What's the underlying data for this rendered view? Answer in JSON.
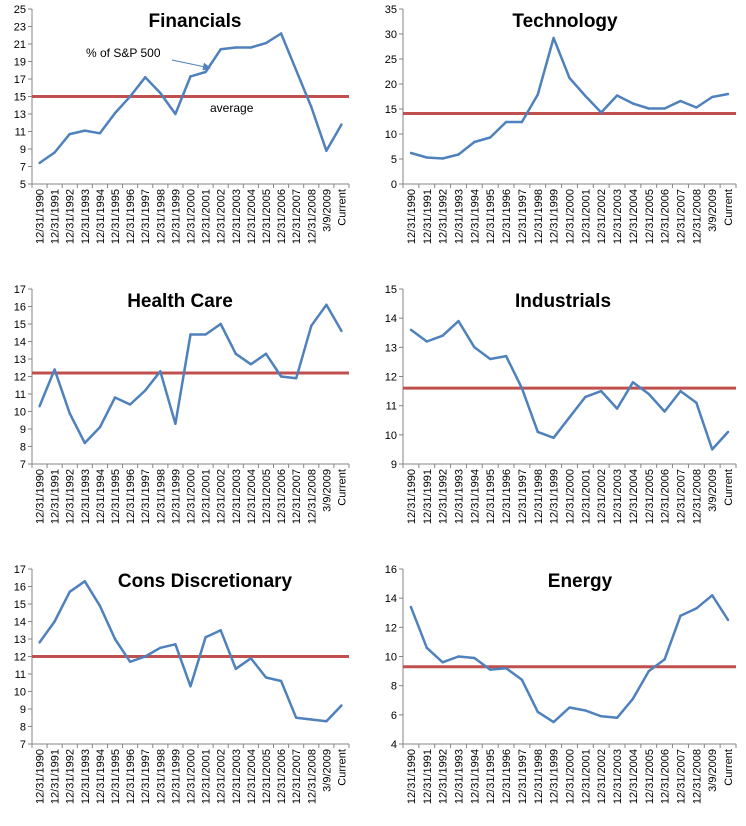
{
  "chart_data": [
    {
      "type": "line",
      "title": "Financials",
      "categories": [
        "12/31/1990",
        "12/31/1991",
        "12/31/1992",
        "12/31/1993",
        "12/31/1994",
        "12/31/1995",
        "12/31/1996",
        "12/31/1997",
        "12/31/1998",
        "12/31/1999",
        "12/31/2000",
        "12/31/2001",
        "12/31/2002",
        "12/31/2003",
        "12/31/2004",
        "12/31/2005",
        "12/31/2006",
        "12/31/2007",
        "12/31/2008",
        "3/9/2009",
        "Current"
      ],
      "series": [
        {
          "values": [
            7.4,
            8.6,
            10.7,
            11.1,
            10.8,
            13.1,
            15.0,
            17.2,
            15.4,
            13.0,
            17.3,
            17.8,
            20.4,
            20.6,
            20.6,
            21.1,
            22.2,
            18.0,
            13.8,
            8.8,
            11.8
          ],
          "color": "#4f81bd"
        }
      ],
      "average": 15.0,
      "average_color": "#c0504d",
      "ylim": [
        5,
        25
      ],
      "yticks": [
        5,
        7,
        9,
        11,
        13,
        15,
        17,
        19,
        21,
        23,
        25
      ],
      "annotations": {
        "series_label": "% of S&P 500",
        "average_label": "average"
      }
    },
    {
      "type": "line",
      "title": "Technology",
      "categories": [
        "12/31/1990",
        "12/31/1991",
        "12/31/1992",
        "12/31/1993",
        "12/31/1994",
        "12/31/1995",
        "12/31/1996",
        "12/31/1997",
        "12/31/1998",
        "12/31/1999",
        "12/31/2000",
        "12/31/2001",
        "12/31/2002",
        "12/31/2003",
        "12/31/2004",
        "12/31/2005",
        "12/31/2006",
        "12/31/2007",
        "12/31/2008",
        "3/9/2009",
        "Current"
      ],
      "series": [
        {
          "values": [
            6.2,
            5.3,
            5.1,
            5.9,
            8.4,
            9.3,
            12.4,
            12.4,
            17.9,
            29.2,
            21.2,
            17.6,
            14.3,
            17.7,
            16.1,
            15.1,
            15.1,
            16.6,
            15.3,
            17.4,
            18.0
          ],
          "color": "#4f81bd"
        }
      ],
      "average": 14.1,
      "average_color": "#c0504d",
      "ylim": [
        0,
        35
      ],
      "yticks": [
        0,
        5,
        10,
        15,
        20,
        25,
        30,
        35
      ]
    },
    {
      "type": "line",
      "title": "Health Care",
      "categories": [
        "12/31/1990",
        "12/31/1991",
        "12/31/1992",
        "12/31/1993",
        "12/31/1994",
        "12/31/1995",
        "12/31/1996",
        "12/31/1997",
        "12/31/1998",
        "12/31/1999",
        "12/31/2000",
        "12/31/2001",
        "12/31/2002",
        "12/31/2003",
        "12/31/2004",
        "12/31/2005",
        "12/31/2006",
        "12/31/2007",
        "12/31/2008",
        "3/9/2009",
        "Current"
      ],
      "series": [
        {
          "values": [
            10.3,
            12.4,
            9.9,
            8.2,
            9.1,
            10.8,
            10.4,
            11.2,
            12.3,
            9.3,
            14.4,
            14.4,
            15.0,
            13.3,
            12.7,
            13.3,
            12.0,
            11.9,
            14.9,
            16.1,
            14.6
          ],
          "color": "#4f81bd"
        }
      ],
      "average": 12.2,
      "average_color": "#c0504d",
      "ylim": [
        7,
        17
      ],
      "yticks": [
        7,
        8,
        9,
        10,
        11,
        12,
        13,
        14,
        15,
        16,
        17
      ]
    },
    {
      "type": "line",
      "title": "Industrials",
      "categories": [
        "12/31/1990",
        "12/31/1991",
        "12/31/1992",
        "12/31/1993",
        "12/31/1994",
        "12/31/1995",
        "12/31/1996",
        "12/31/1997",
        "12/31/1998",
        "12/31/1999",
        "12/31/2000",
        "12/31/2001",
        "12/31/2002",
        "12/31/2003",
        "12/31/2004",
        "12/31/2005",
        "12/31/2006",
        "12/31/2007",
        "12/31/2008",
        "3/9/2009",
        "Current"
      ],
      "series": [
        {
          "values": [
            13.6,
            13.2,
            13.4,
            13.9,
            13.0,
            12.6,
            12.7,
            11.6,
            10.1,
            9.9,
            10.6,
            11.3,
            11.5,
            10.9,
            11.8,
            11.4,
            10.8,
            11.5,
            11.1,
            9.5,
            10.1
          ],
          "color": "#4f81bd"
        }
      ],
      "average": 11.6,
      "average_color": "#c0504d",
      "ylim": [
        9,
        15
      ],
      "yticks": [
        9,
        10,
        11,
        12,
        13,
        14,
        15
      ]
    },
    {
      "type": "line",
      "title": "Cons Discretionary",
      "categories": [
        "12/31/1990",
        "12/31/1991",
        "12/31/1992",
        "12/31/1993",
        "12/31/1994",
        "12/31/1995",
        "12/31/1996",
        "12/31/1997",
        "12/31/1998",
        "12/31/1999",
        "12/31/2000",
        "12/31/2001",
        "12/31/2002",
        "12/31/2003",
        "12/31/2004",
        "12/31/2005",
        "12/31/2006",
        "12/31/2007",
        "12/31/2008",
        "3/9/2009",
        "Current"
      ],
      "series": [
        {
          "values": [
            12.8,
            14.0,
            15.7,
            16.3,
            14.9,
            13.0,
            11.7,
            12.0,
            12.5,
            12.7,
            10.3,
            13.1,
            13.5,
            11.3,
            11.9,
            10.8,
            10.6,
            8.5,
            8.4,
            8.3,
            9.2
          ],
          "color": "#4f81bd"
        }
      ],
      "average": 12.0,
      "average_color": "#c0504d",
      "ylim": [
        7,
        17
      ],
      "yticks": [
        7,
        8,
        9,
        10,
        11,
        12,
        13,
        14,
        15,
        16,
        17
      ]
    },
    {
      "type": "line",
      "title": "Energy",
      "categories": [
        "12/31/1990",
        "12/31/1991",
        "12/31/1992",
        "12/31/1993",
        "12/31/1994",
        "12/31/1995",
        "12/31/1996",
        "12/31/1997",
        "12/31/1998",
        "12/31/1999",
        "12/31/2000",
        "12/31/2001",
        "12/31/2002",
        "12/31/2003",
        "12/31/2004",
        "12/31/2005",
        "12/31/2006",
        "12/31/2007",
        "12/31/2008",
        "3/9/2009",
        "Current"
      ],
      "series": [
        {
          "values": [
            13.4,
            10.6,
            9.6,
            10.0,
            9.9,
            9.1,
            9.2,
            8.4,
            6.2,
            5.5,
            6.5,
            6.3,
            5.9,
            5.8,
            7.1,
            9.0,
            9.8,
            12.8,
            13.3,
            14.2,
            12.5
          ],
          "color": "#4f81bd"
        }
      ],
      "average": 9.3,
      "average_color": "#c0504d",
      "ylim": [
        4,
        16
      ],
      "yticks": [
        4,
        6,
        8,
        10,
        12,
        14,
        16
      ]
    }
  ]
}
